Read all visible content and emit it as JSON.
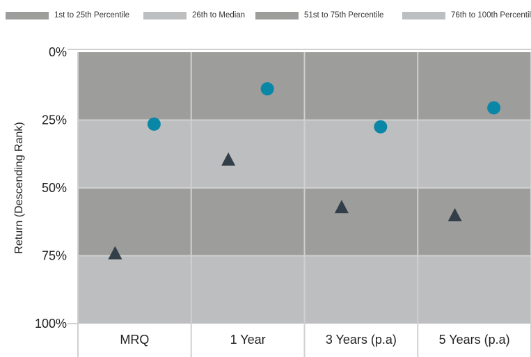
{
  "colors": {
    "band_dark": "#9d9d9c",
    "band_light": "#bdbec0",
    "series_circle": "#0a86a6",
    "series_triangle": "#333f48",
    "grid": "#d0d0d0"
  },
  "legend": [
    {
      "label": "1st to 25th Percentile",
      "color": "#9d9d9c"
    },
    {
      "label": "26th to Median",
      "color": "#bdbec0"
    },
    {
      "label": "51st to 75th Percentile",
      "color": "#9d9d9c"
    },
    {
      "label": "76th to 100th Percentile",
      "color": "#bdbec0"
    }
  ],
  "chart_data": {
    "type": "scatter",
    "categories": [
      "MRQ",
      "1 Year",
      "3 Years (p.a)",
      "5 Years (p.a)"
    ],
    "ylabel": "Return (Descending Rank)",
    "ylim": [
      0,
      100
    ],
    "y_inverted": true,
    "y_ticks": [
      0,
      25,
      50,
      75,
      100
    ],
    "y_tick_labels": [
      "0%",
      "25%",
      "50%",
      "75%",
      "100%"
    ],
    "bands": [
      {
        "from": 0,
        "to": 25,
        "color": "#9d9d9c"
      },
      {
        "from": 25,
        "to": 50,
        "color": "#bdbec0"
      },
      {
        "from": 50,
        "to": 75,
        "color": "#9d9d9c"
      },
      {
        "from": 75,
        "to": 100,
        "color": "#bdbec0"
      }
    ],
    "series": [
      {
        "marker": "circle",
        "color": "#0a86a6",
        "values": [
          26.5,
          13.5,
          27.5,
          20.5
        ]
      },
      {
        "marker": "triangle",
        "color": "#333f48",
        "values": [
          74,
          39.5,
          57,
          60
        ]
      }
    ],
    "grid": true
  }
}
